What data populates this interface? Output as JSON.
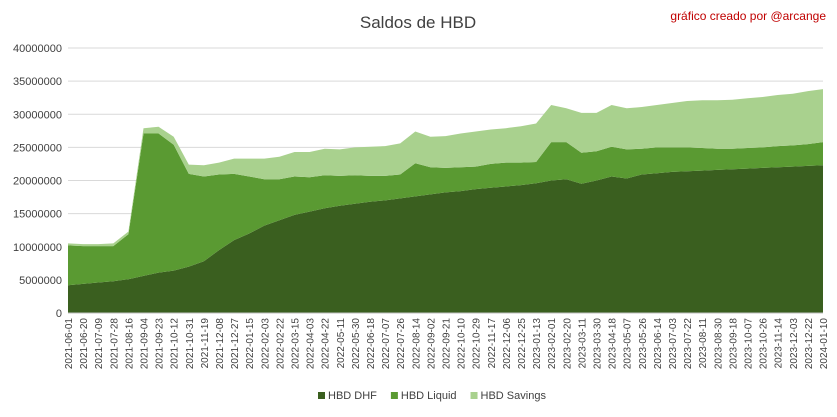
{
  "chart_data": {
    "type": "area",
    "stacked": true,
    "title": "Saldos de HBD",
    "credit": "gráfico creado por @arcange",
    "xlabel": "",
    "ylabel": "",
    "ylim": [
      0,
      40000000
    ],
    "yticks": [
      "0",
      "5000000",
      "10000000",
      "15000000",
      "20000000",
      "25000000",
      "30000000",
      "35000000",
      "40000000"
    ],
    "grid": true,
    "legend_position": "bottom",
    "x": [
      "2021-06-01",
      "2021-06-20",
      "2021-07-09",
      "2021-07-28",
      "2021-08-16",
      "2021-09-04",
      "2021-09-23",
      "2021-10-12",
      "2021-10-31",
      "2021-11-19",
      "2021-12-08",
      "2021-12-27",
      "2022-01-15",
      "2022-02-03",
      "2022-02-22",
      "2022-03-15",
      "2022-04-03",
      "2022-04-22",
      "2022-05-11",
      "2022-05-30",
      "2022-06-18",
      "2022-07-07",
      "2022-07-26",
      "2022-08-14",
      "2022-09-02",
      "2022-09-21",
      "2022-10-10",
      "2022-10-29",
      "2022-11-17",
      "2022-12-06",
      "2022-12-25",
      "2023-01-13",
      "2023-02-01",
      "2023-02-20",
      "2023-03-11",
      "2023-03-30",
      "2023-04-18",
      "2023-05-07",
      "2023-05-26",
      "2023-06-14",
      "2023-07-03",
      "2023-07-22",
      "2023-08-11",
      "2023-08-30",
      "2023-09-18",
      "2023-10-07",
      "2023-10-26",
      "2023-11-14",
      "2023-12-03",
      "2023-12-22",
      "2024-01-10"
    ],
    "series": [
      {
        "name": "HBD DHF",
        "color": "#3a5f1f",
        "values": [
          4200000,
          4400000,
          4600000,
          4800000,
          5100000,
          5600000,
          6100000,
          6400000,
          7000000,
          7800000,
          9500000,
          11000000,
          12000000,
          13200000,
          14000000,
          14800000,
          15300000,
          15800000,
          16200000,
          16500000,
          16800000,
          17000000,
          17300000,
          17600000,
          17900000,
          18200000,
          18400000,
          18700000,
          18900000,
          19100000,
          19300000,
          19600000,
          20000000,
          20200000,
          19500000,
          20000000,
          20600000,
          20300000,
          20900000,
          21100000,
          21300000,
          21400000,
          21500000,
          21600000,
          21700000,
          21800000,
          21900000,
          22000000,
          22100000,
          22200000,
          22300000
        ]
      },
      {
        "name": "HBD Liquid",
        "color": "#5a9a32",
        "values": [
          6000000,
          5700000,
          5500000,
          5300000,
          6800000,
          21500000,
          21000000,
          19000000,
          14000000,
          12800000,
          11400000,
          10000000,
          8600000,
          7000000,
          6200000,
          5800000,
          5200000,
          5000000,
          4500000,
          4300000,
          3900000,
          3700000,
          3600000,
          5000000,
          4100000,
          3700000,
          3600000,
          3400000,
          3600000,
          3600000,
          3400000,
          3200000,
          5800000,
          5600000,
          4700000,
          4400000,
          4500000,
          4400000,
          3900000,
          3900000,
          3700000,
          3600000,
          3400000,
          3200000,
          3100000,
          3100000,
          3100000,
          3200000,
          3200000,
          3300000,
          3500000
        ]
      },
      {
        "name": "HBD Savings",
        "color": "#a9d18e",
        "values": [
          300000,
          300000,
          300000,
          400000,
          400000,
          800000,
          1000000,
          1200000,
          1400000,
          1700000,
          1800000,
          2300000,
          2700000,
          3100000,
          3400000,
          3700000,
          3800000,
          4000000,
          4000000,
          4200000,
          4400000,
          4500000,
          4700000,
          4800000,
          4600000,
          4800000,
          5100000,
          5300000,
          5200000,
          5200000,
          5500000,
          5800000,
          5600000,
          5100000,
          6000000,
          5800000,
          6300000,
          6200000,
          6300000,
          6400000,
          6700000,
          7000000,
          7200000,
          7300000,
          7400000,
          7500000,
          7600000,
          7700000,
          7800000,
          8000000,
          8000000
        ]
      }
    ]
  }
}
